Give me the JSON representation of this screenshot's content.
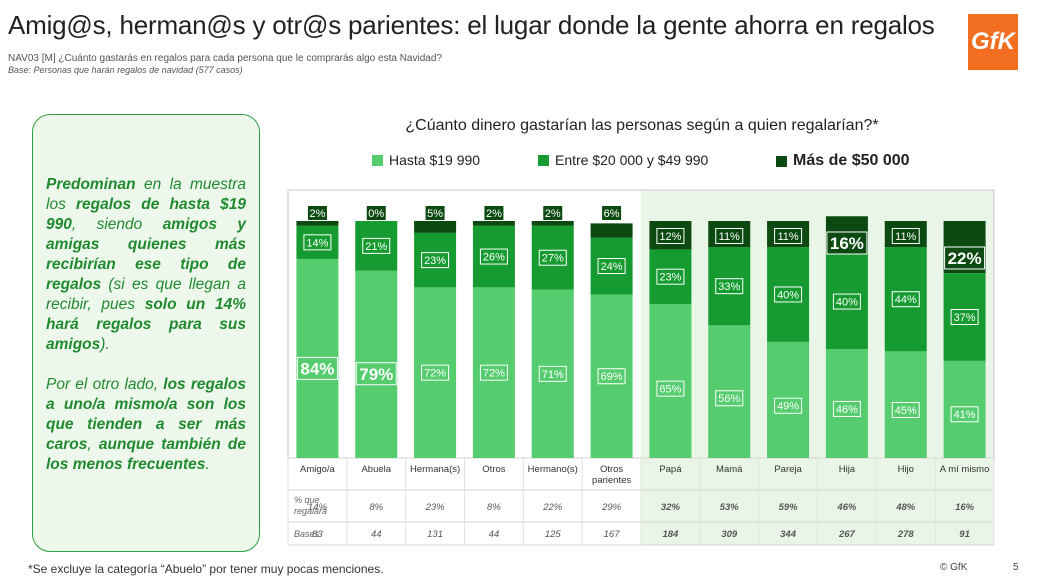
{
  "header": {
    "title": "Amig@s, herman@s y otr@s parientes: el lugar donde la gente ahorra en regalos",
    "question": "NAV03 [M] ¿Cuánto gastarás en regalos para cada persona que le comprarás algo esta Navidad?",
    "base": "Base: Personas que harán regalos de navidad (577 casos)",
    "logo": "GfK"
  },
  "callout": {
    "p1_a": "Predominan",
    "p1_b": " en la muestra los ",
    "p1_c": "regalos de hasta $19 990",
    "p1_d": ", siendo ",
    "p1_e": "amigos y amigas quienes más recibirían ese tipo de regalos",
    "p1_f": " (si es que llegan a recibir, pues ",
    "p1_g": "solo un 14% hará regalos para sus amigos",
    "p1_h": ").",
    "p2_a": "Por el otro lado, ",
    "p2_b": "los regalos a uno/a mismo/a son los que tienden a ser más caros",
    "p2_c": ", ",
    "p2_d": "aunque también de los menos frecuentes",
    "p2_e": "."
  },
  "colors": {
    "light": "#55cc6e",
    "mid": "#159b2f",
    "dark": "#0c4a12",
    "highlight_bg": "#e9f6e7"
  },
  "chart_data": {
    "type": "bar",
    "stacked": true,
    "title": "¿Cúanto dinero gastarían las personas según a quien regalarían?*",
    "ylim": [
      0,
      100
    ],
    "categories": [
      "Amigo/a",
      "Abuela",
      "Hermana(s)",
      "Otros",
      "Hermano(s)",
      "Otros parientes",
      "Papá",
      "Mamá",
      "Pareja",
      "Hija",
      "Hijo",
      "A mí mismo"
    ],
    "series": [
      {
        "name": "Hasta $19 990",
        "values": [
          84,
          79,
          72,
          72,
          71,
          69,
          65,
          56,
          49,
          46,
          45,
          41
        ]
      },
      {
        "name": "Entre $20 000 y $49 990",
        "values": [
          14,
          21,
          23,
          26,
          27,
          24,
          23,
          33,
          40,
          40,
          44,
          37
        ]
      },
      {
        "name": "Más de $50 000",
        "values": [
          2,
          0,
          5,
          2,
          2,
          6,
          12,
          11,
          11,
          16,
          11,
          22
        ]
      }
    ],
    "highlighted_categories": [
      "Papá",
      "Mamá",
      "Pareja",
      "Hija",
      "Hijo",
      "A mí mismo"
    ],
    "table": {
      "row1_label": "% que regalará",
      "row1_values": [
        "14%",
        "8%",
        "23%",
        "8%",
        "22%",
        "29%",
        "32%",
        "53%",
        "59%",
        "46%",
        "48%",
        "16%"
      ],
      "row2_label": "Bases",
      "row2_values": [
        "83",
        "44",
        "131",
        "44",
        "125",
        "167",
        "184",
        "309",
        "344",
        "267",
        "278",
        "91"
      ]
    }
  },
  "footer": {
    "note": "*Se excluye la categoría “Abuelo” por tener muy pocas menciones.",
    "copyright": "© GfK",
    "page": "5"
  }
}
